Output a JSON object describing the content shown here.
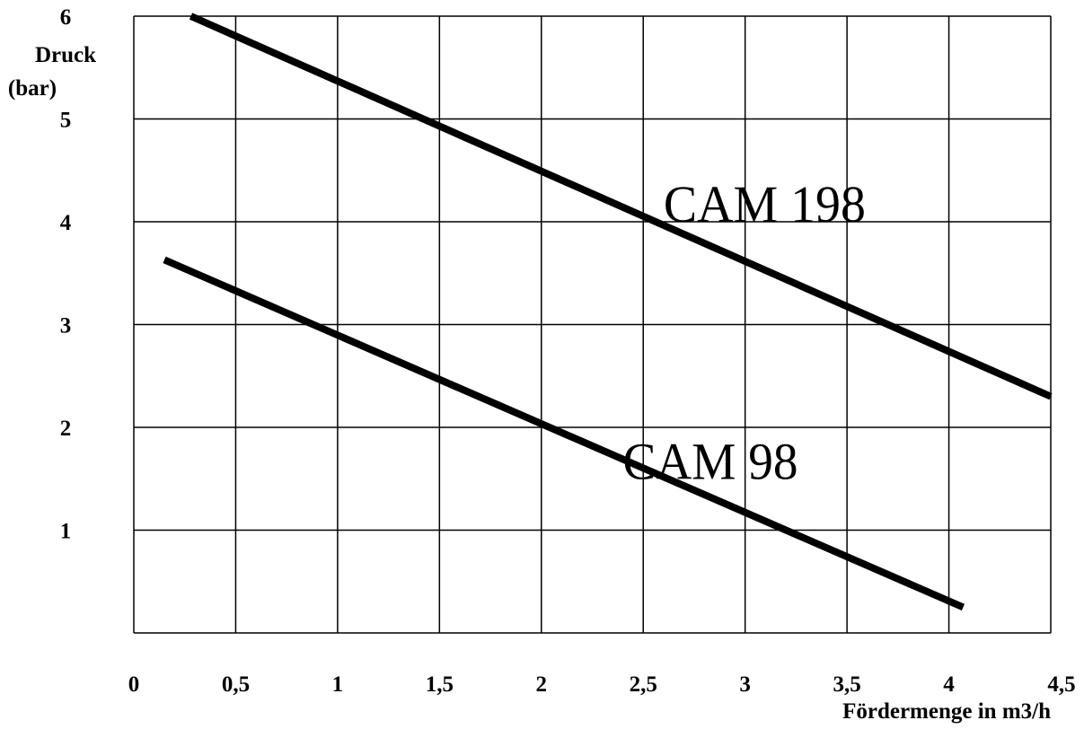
{
  "chart_data": {
    "type": "line",
    "title": "",
    "xlabel": "Fördermenge in m3/h",
    "ylabel_lines": [
      "Druck",
      "(bar)"
    ],
    "xlim": [
      0,
      4.5
    ],
    "ylim": [
      0,
      6
    ],
    "grid": true,
    "x_ticks": [
      {
        "value": 0,
        "label": "0"
      },
      {
        "value": 0.5,
        "label": "0,5"
      },
      {
        "value": 1,
        "label": "1"
      },
      {
        "value": 1.5,
        "label": "1,5"
      },
      {
        "value": 2,
        "label": "2"
      },
      {
        "value": 2.5,
        "label": "2,5"
      },
      {
        "value": 3,
        "label": "3"
      },
      {
        "value": 3.5,
        "label": "3,5"
      },
      {
        "value": 4,
        "label": "4"
      },
      {
        "value": 4.5,
        "label": "4,5"
      }
    ],
    "y_ticks": [
      {
        "value": 1,
        "label": "1"
      },
      {
        "value": 2,
        "label": "2"
      },
      {
        "value": 3,
        "label": "3"
      },
      {
        "value": 4,
        "label": "4"
      },
      {
        "value": 5,
        "label": "5"
      },
      {
        "value": 6,
        "label": "6"
      }
    ],
    "series": [
      {
        "name": "CAM 198",
        "color": "#000000",
        "x": [
          0.28,
          4.5
        ],
        "y": [
          6.0,
          2.3
        ],
        "label_at": [
          2.6,
          4.0
        ]
      },
      {
        "name": "CAM 98",
        "color": "#000000",
        "x": [
          0.15,
          4.07
        ],
        "y": [
          3.63,
          0.25
        ],
        "label_at": [
          2.4,
          1.5
        ]
      }
    ]
  }
}
